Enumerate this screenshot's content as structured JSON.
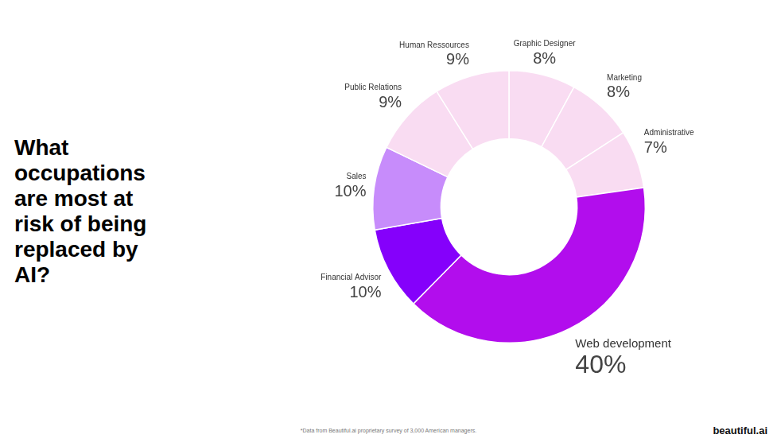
{
  "chart_data": {
    "type": "doughnut",
    "title": "What occupations are most at risk of being replaced by AI?",
    "categories": [
      "Graphic Designer",
      "Marketing",
      "Administrative",
      "Web development",
      "Financial Advisor",
      "Sales",
      "Public Relations",
      "Human Ressources"
    ],
    "values": [
      8,
      8,
      7,
      40,
      10,
      10,
      9,
      9
    ],
    "value_labels": [
      "8%",
      "8%",
      "7%",
      "40%",
      "10%",
      "10%",
      "9%",
      "9%"
    ],
    "colors": [
      "#f9dcf2",
      "#f9dcf2",
      "#f9dcf2",
      "#b20ded",
      "#8500fb",
      "#c78cfb",
      "#f9dcf2",
      "#f9dcf2"
    ],
    "data_labels": true,
    "footnote": "*Data from Beautiful.ai proprietary survey of 3,000 American managers.",
    "brand": "beautiful.ai"
  }
}
